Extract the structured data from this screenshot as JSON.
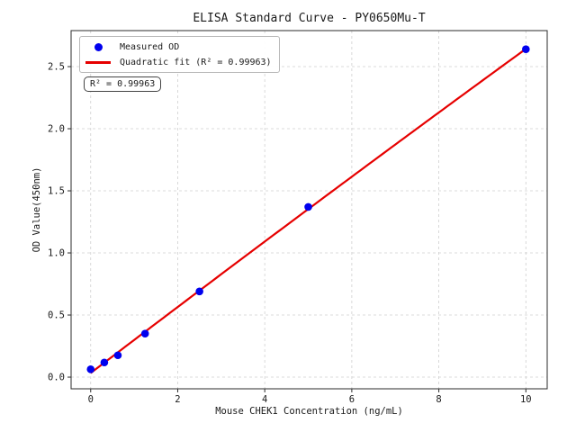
{
  "figure": {
    "background": "#ffffff"
  },
  "chart_data": {
    "type": "scatter",
    "title": "ELISA Standard Curve - PY0650Mu-T",
    "xlabel": "Mouse CHEK1 Concentration (ng/mL)",
    "ylabel": "OD Value(450nm)",
    "xlim": [
      -0.45,
      10.49
    ],
    "ylim": [
      -0.094,
      2.79
    ],
    "x_ticks": [
      0,
      2,
      4,
      6,
      8,
      10
    ],
    "x_tick_labels": [
      "0",
      "2",
      "4",
      "6",
      "8",
      "10"
    ],
    "y_ticks": [
      0,
      0.5,
      1.0,
      1.5,
      2.0,
      2.5
    ],
    "y_tick_labels": [
      "0.0",
      "0.5",
      "1.0",
      "1.5",
      "2.0",
      "2.5"
    ],
    "grid": true,
    "legend_position": "upper left",
    "annotation": "R² = 0.99963",
    "series": [
      {
        "name": "Measured OD",
        "type": "scatter",
        "marker": "circle",
        "color": "#0000ee",
        "x": [
          0,
          0.313,
          0.625,
          1.25,
          2.5,
          5,
          10
        ],
        "y": [
          0.063,
          0.118,
          0.176,
          0.35,
          0.69,
          1.37,
          2.64
        ]
      },
      {
        "name": "Quadratic fit (R² = 0.99963)",
        "type": "line",
        "color": "#e60000",
        "linewidth": 2.2,
        "fit_quadratic": {
          "a": 0.033,
          "b": 0.267,
          "c": -0.0006
        },
        "x_range": [
          0,
          10
        ]
      }
    ],
    "colors": {
      "grid": "#cfcfcf",
      "axis": "#2b2b2b",
      "text": "#1a1a1a"
    }
  }
}
